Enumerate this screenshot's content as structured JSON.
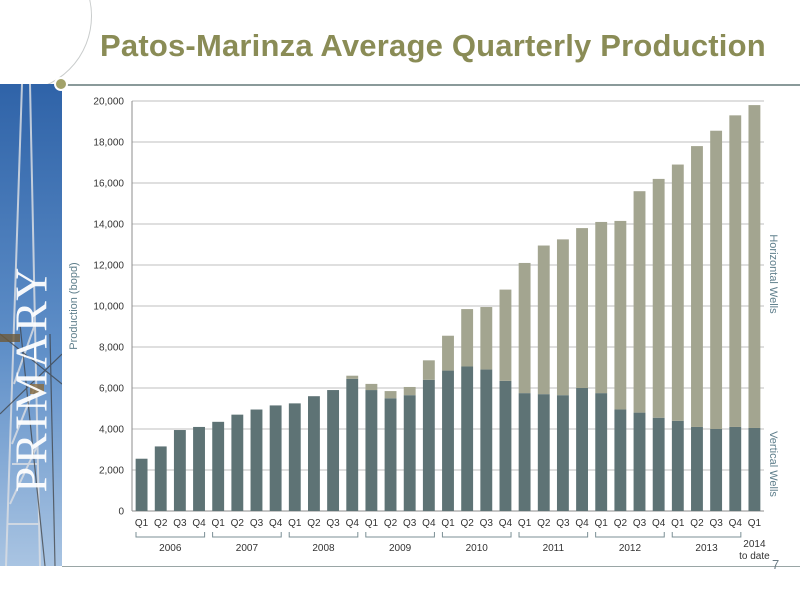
{
  "slide": {
    "title": "Patos-Marinza Average Quarterly Production",
    "side_word": "PRIMARY",
    "page_number": "7"
  },
  "colors": {
    "title": "#8a8c56",
    "vertical_wells": "#5e7375",
    "horizontal_wells": "#a3a590",
    "gridline": "#bfbfbf",
    "label_accent": "#5f7f8c"
  },
  "chart_data": {
    "type": "bar",
    "stacked": true,
    "ylabel": "Production (bopd)",
    "ylim": [
      0,
      20000
    ],
    "yticks": [
      0,
      2000,
      4000,
      6000,
      8000,
      10000,
      12000,
      14000,
      16000,
      18000,
      20000
    ],
    "ytick_labels": [
      "0",
      "2,000",
      "4,000",
      "6,000",
      "8,000",
      "10,000",
      "12,000",
      "14,000",
      "16,000",
      "18,000",
      "20,000"
    ],
    "grid": true,
    "categories": [
      "Q1",
      "Q2",
      "Q3",
      "Q4",
      "Q1",
      "Q2",
      "Q3",
      "Q4",
      "Q1",
      "Q2",
      "Q3",
      "Q4",
      "Q1",
      "Q2",
      "Q3",
      "Q4",
      "Q1",
      "Q2",
      "Q3",
      "Q4",
      "Q1",
      "Q2",
      "Q3",
      "Q4",
      "Q1",
      "Q2",
      "Q3",
      "Q4",
      "Q1",
      "Q2",
      "Q3",
      "Q4",
      "Q1"
    ],
    "year_groups": [
      {
        "label": "2006",
        "start": 0,
        "end": 3
      },
      {
        "label": "2007",
        "start": 4,
        "end": 7
      },
      {
        "label": "2008",
        "start": 8,
        "end": 11
      },
      {
        "label": "2009",
        "start": 12,
        "end": 15
      },
      {
        "label": "2010",
        "start": 16,
        "end": 19
      },
      {
        "label": "2011",
        "start": 20,
        "end": 23
      },
      {
        "label": "2012",
        "start": 24,
        "end": 27
      },
      {
        "label": "2013",
        "start": 28,
        "end": 31
      },
      {
        "label": "2014",
        "sublabel": "to date",
        "start": 32,
        "end": 32
      }
    ],
    "series": [
      {
        "name": "Vertical Wells",
        "values": [
          2550,
          3150,
          3950,
          4100,
          4350,
          4700,
          4950,
          5150,
          5250,
          5600,
          5900,
          6450,
          5900,
          5500,
          5650,
          6400,
          6850,
          7050,
          6900,
          6350,
          5750,
          5700,
          5650,
          6000,
          5750,
          4950,
          4800,
          4550,
          4400,
          4100,
          4000,
          4100,
          4050
        ]
      },
      {
        "name": "Horizontal Wells",
        "values": [
          0,
          0,
          0,
          0,
          0,
          0,
          0,
          0,
          0,
          0,
          0,
          150,
          300,
          350,
          400,
          950,
          1700,
          2800,
          3050,
          4450,
          6350,
          7250,
          7600,
          7800,
          8350,
          9200,
          10800,
          11650,
          12500,
          13700,
          14550,
          15200,
          15750
        ]
      }
    ]
  }
}
